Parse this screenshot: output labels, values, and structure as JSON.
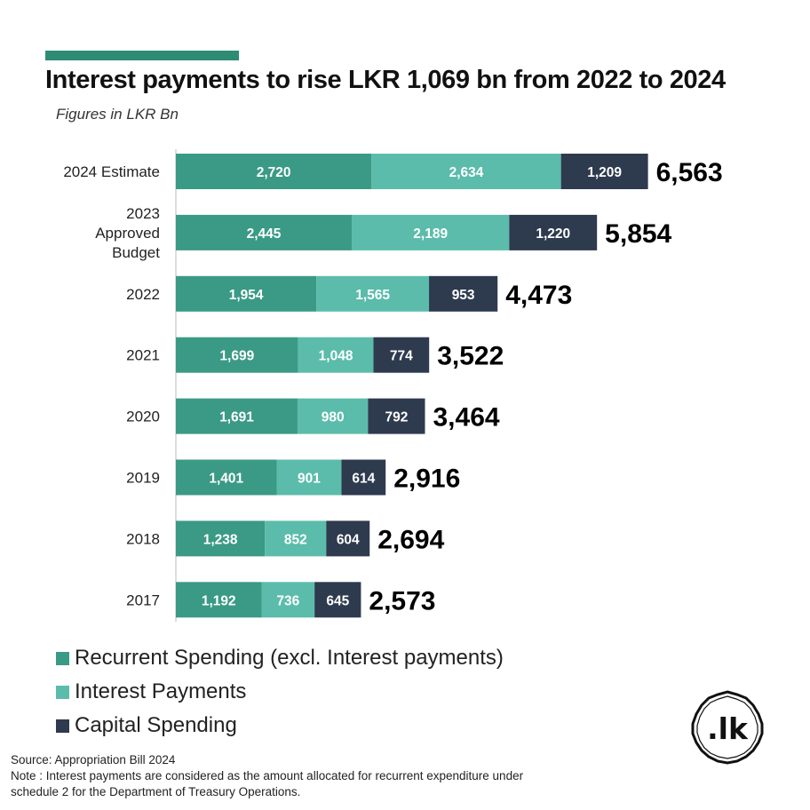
{
  "colors": {
    "accent": "#2e8b74",
    "recurrent": "#3a9a85",
    "interest": "#5bbcab",
    "capital": "#2e3a4e",
    "text_on_bar": "#ffffff",
    "total_text": "#000000"
  },
  "header": {
    "title": "Interest payments to rise LKR 1,069 bn from 2022 to 2024",
    "subtitle": "Figures in LKR Bn"
  },
  "chart_data": {
    "type": "bar",
    "orientation": "horizontal",
    "stacked": true,
    "categories": [
      "2024 Estimate",
      "2023 Approved Budget",
      "2022",
      "2021",
      "2020",
      "2019",
      "2018",
      "2017"
    ],
    "category_lines": [
      [
        "2024 Estimate"
      ],
      [
        "2023",
        "Approved",
        "Budget"
      ],
      [
        "2022"
      ],
      [
        "2021"
      ],
      [
        "2020"
      ],
      [
        "2019"
      ],
      [
        "2018"
      ],
      [
        "2017"
      ]
    ],
    "series": [
      {
        "name": "Recurrent Spending (excl. Interest payments)",
        "values": [
          2720,
          2445,
          1954,
          1699,
          1691,
          1401,
          1238,
          1192
        ],
        "labels": [
          "2,720",
          "2,445",
          "1,954",
          "1,699",
          "1,691",
          "1,401",
          "1,238",
          "1,192"
        ]
      },
      {
        "name": "Interest Payments",
        "values": [
          2634,
          2189,
          1565,
          1048,
          980,
          901,
          852,
          736
        ],
        "labels": [
          "2,634",
          "2,189",
          "1,565",
          "1,048",
          "980",
          "901",
          "852",
          "736"
        ]
      },
      {
        "name": "Capital Spending",
        "values": [
          1209,
          1220,
          953,
          774,
          792,
          614,
          604,
          645
        ],
        "labels": [
          "1,209",
          "1,220",
          "953",
          "774",
          "792",
          "614",
          "604",
          "645"
        ]
      }
    ],
    "totals": [
      6563,
      5854,
      4473,
      3522,
      3464,
      2916,
      2694,
      2573
    ],
    "total_labels": [
      "6,563",
      "5,854",
      "4,473",
      "3,522",
      "3,464",
      "2,916",
      "2,694",
      "2,573"
    ],
    "grid": false,
    "legend_position": "bottom-left"
  },
  "legend": {
    "items": [
      {
        "label": "Recurrent Spending (excl. Interest payments)",
        "color": "#3a9a85"
      },
      {
        "label": "Interest Payments",
        "color": "#5bbcab"
      },
      {
        "label": "Capital Spending",
        "color": "#2e3a4e"
      }
    ]
  },
  "footer": {
    "source": "Source: Appropriation Bill 2024",
    "note_line1": "Note : Interest payments are considered as the amount allocated for recurrent expenditure under",
    "note_line2": "schedule 2 for the Department of Treasury Operations."
  },
  "logo": {
    "text": ".lk"
  }
}
